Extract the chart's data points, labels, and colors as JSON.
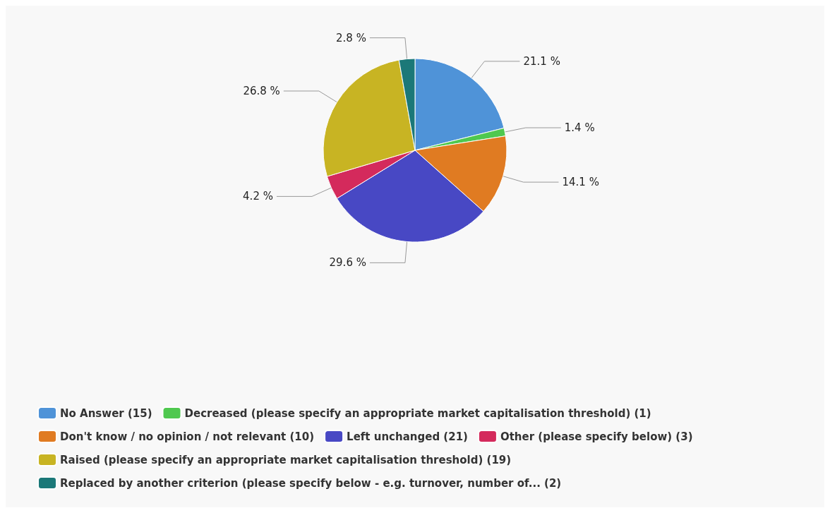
{
  "chart_data": {
    "type": "pie",
    "categories": [
      "No Answer (15)",
      "Decreased (please specify an appropriate market capitalisation threshold) (1)",
      "Don't know / no opinion / not relevant (10)",
      "Left unchanged (21)",
      "Other (please specify below) (3)",
      "Raised (please specify an appropriate market capitalisation threshold) (19)",
      "Replaced by another criterion (please specify below - e.g. turnover, number of... (2)"
    ],
    "values": [
      21.1,
      1.4,
      14.1,
      29.6,
      4.2,
      26.8,
      2.8
    ],
    "value_labels": [
      "21.1 %",
      "1.4 %",
      "14.1 %",
      "29.6 %",
      "4.2 %",
      "26.8 %",
      "2.8 %"
    ],
    "colors": [
      "#4f93d8",
      "#4fc84f",
      "#e07b22",
      "#4848c4",
      "#d42a5c",
      "#c8b423",
      "#1b7878"
    ],
    "legend": "bottom"
  }
}
